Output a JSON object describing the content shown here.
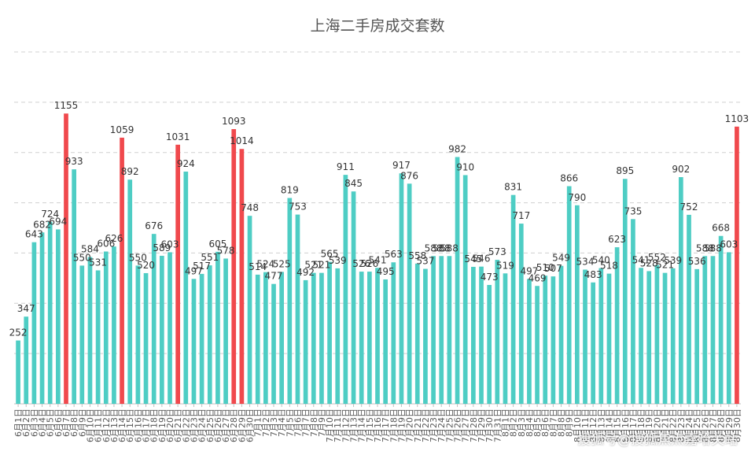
{
  "title": "上海二手房成交套数",
  "credit": "搜狐号@搜狐焦点嘉哈关站",
  "chart_data": {
    "type": "bar",
    "title": "上海二手房成交套数",
    "xlabel": "",
    "ylabel": "",
    "ylim": [
      0,
      1400
    ],
    "grid": true,
    "colors": {
      "normal": "#4ECDC4",
      "highlight": "#F0494D",
      "grid": "#d0d0d0",
      "axis": "#bfbfbf",
      "label": "#333333",
      "tick": "#595959"
    },
    "categories": [
      "6月1日",
      "6月2日",
      "6月3日",
      "6月4日",
      "6月5日",
      "6月6日",
      "6月7日",
      "6月8日",
      "6月9日",
      "6月10日",
      "6月11日",
      "6月12日",
      "6月13日",
      "6月14日",
      "6月15日",
      "6月16日",
      "6月17日",
      "6月18日",
      "6月19日",
      "6月20日",
      "6月21日",
      "6月22日",
      "6月23日",
      "6月24日",
      "6月25日",
      "6月26日",
      "6月27日",
      "6月28日",
      "6月29日",
      "6月30日",
      "7月1日",
      "7月2日",
      "7月3日",
      "7月4日",
      "7月5日",
      "7月6日",
      "7月7日",
      "7月8日",
      "7月9日",
      "7月10日",
      "7月11日",
      "7月12日",
      "7月13日",
      "7月14日",
      "7月15日",
      "7月16日",
      "7月17日",
      "7月18日",
      "7月19日",
      "7月20日",
      "7月21日",
      "7月22日",
      "7月23日",
      "7月24日",
      "7月25日",
      "7月26日",
      "7月27日",
      "7月28日",
      "7月29日",
      "7月30日",
      "7月31日",
      "8月1日",
      "8月2日",
      "8月3日",
      "8月4日",
      "8月5日",
      "8月6日",
      "8月7日",
      "8月8日",
      "8月9日",
      "8月10日",
      "8月11日",
      "8月12日",
      "8月13日",
      "8月14日",
      "8月15日",
      "8月16日",
      "8月17日",
      "8月18日",
      "8月19日",
      "8月20日",
      "8月21日",
      "8月22日",
      "8月23日",
      "8月24日",
      "8月25日",
      "8月26日",
      "8月27日",
      "8月28日",
      "8月29日",
      "8月30日"
    ],
    "values": [
      252,
      347,
      643,
      682,
      724,
      694,
      1155,
      933,
      550,
      584,
      531,
      606,
      626,
      1059,
      892,
      550,
      520,
      676,
      589,
      603,
      1031,
      924,
      497,
      517,
      551,
      605,
      578,
      1093,
      1014,
      748,
      514,
      524,
      477,
      525,
      819,
      753,
      492,
      521,
      521,
      565,
      539,
      911,
      845,
      526,
      526,
      541,
      495,
      563,
      917,
      876,
      558,
      537,
      588,
      588,
      588,
      982,
      910,
      545,
      546,
      473,
      573,
      519,
      831,
      717,
      497,
      469,
      510,
      507,
      549,
      866,
      790,
      534,
      483,
      540,
      518,
      623,
      895,
      735,
      541,
      528,
      552,
      521,
      539,
      902,
      752,
      536,
      588,
      588,
      668,
      603,
      1103
    ],
    "highlight_indices": [
      6,
      13,
      20,
      27,
      28,
      90
    ]
  }
}
